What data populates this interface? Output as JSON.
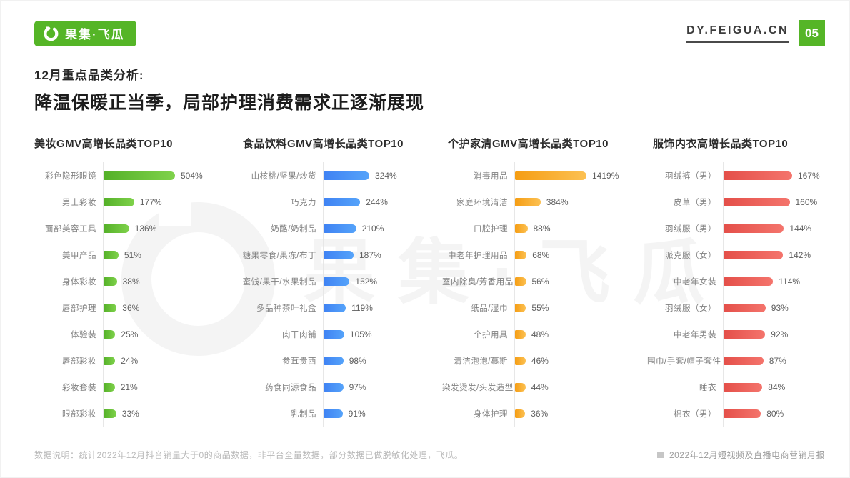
{
  "header": {
    "logo_text": "果集·飞瓜",
    "site_url": "DY.FEIGUA.CN",
    "page_number": "05"
  },
  "title": {
    "kicker": "12月重点品类分析:",
    "main": "降温保暖正当季，局部护理消费需求正逐渐展现"
  },
  "watermark_text": "果集·飞瓜",
  "brand_color": "#55b527",
  "footer": {
    "note": "数据说明：统计2022年12月抖音销量大于0的商品数据，非平台全量数据，部分数据已做脱敏化处理，飞瓜。",
    "source": "2022年12月短视频及直播电商营销月报"
  },
  "chart_data": [
    {
      "type": "bar",
      "orientation": "horizontal",
      "title": "美妆GMV高增长品类TOP10",
      "categories": [
        "彩色隐形眼镜",
        "男士彩妆",
        "面部美容工具",
        "美甲产品",
        "身体彩妆",
        "唇部护理",
        "体验装",
        "唇部彩妆",
        "彩妆套装",
        "眼部彩妆"
      ],
      "values": [
        504,
        177,
        136,
        51,
        38,
        36,
        25,
        24,
        21,
        33
      ],
      "value_labels": [
        "504%",
        "177%",
        "136%",
        "51%",
        "38%",
        "36%",
        "25%",
        "24%",
        "21%",
        "33%"
      ],
      "xlim": [
        0,
        504
      ],
      "bar_color_start": "#54b028",
      "bar_color_end": "#7fd24b"
    },
    {
      "type": "bar",
      "orientation": "horizontal",
      "title": "食品饮料GMV高增长品类TOP10",
      "categories": [
        "山核桃/坚果/炒货",
        "巧克力",
        "奶酪/奶制品",
        "糖果零食/果冻/布丁",
        "蜜饯/果干/水果制品",
        "多品种茶叶礼盒",
        "肉干肉铺",
        "参茸贵西",
        "药食同源食品",
        "乳制品"
      ],
      "values": [
        324,
        244,
        210,
        187,
        152,
        119,
        105,
        98,
        97,
        91
      ],
      "value_labels": [
        "324%",
        "244%",
        "210%",
        "187%",
        "152%",
        "119%",
        "105%",
        "98%",
        "97%",
        "91%"
      ],
      "xlim": [
        0,
        324
      ],
      "bar_color_start": "#3f82f3",
      "bar_color_end": "#55a3fa"
    },
    {
      "type": "bar",
      "orientation": "horizontal",
      "title": "个护家清GMV高增长品类TOP10",
      "categories": [
        "消毒用品",
        "家庭环境清洁",
        "口腔护理",
        "中老年护理用品",
        "室内除臭/芳香用品",
        "纸品/湿巾",
        "个护用具",
        "清洁泡泡/慕斯",
        "染发烫发/头发造型",
        "身体护理"
      ],
      "values": [
        1419,
        384,
        88,
        68,
        56,
        55,
        48,
        46,
        44,
        36
      ],
      "value_labels": [
        "1419%",
        "384%",
        "88%",
        "68%",
        "56%",
        "55%",
        "48%",
        "46%",
        "44%",
        "36%"
      ],
      "xlim": [
        0,
        1419
      ],
      "bar_color_start": "#f59d13",
      "bar_color_end": "#fcc153"
    },
    {
      "type": "bar",
      "orientation": "horizontal",
      "title": "服饰内衣高增长品类TOP10",
      "categories": [
        "羽绒裤（男）",
        "皮草（男）",
        "羽绒服（男）",
        "派克服（女）",
        "中老年女装",
        "羽绒服（女）",
        "中老年男装",
        "围巾/手套/帽子套件",
        "睡衣",
        "棉衣（男）"
      ],
      "values": [
        167,
        160,
        144,
        142,
        114,
        93,
        92,
        87,
        84,
        80
      ],
      "value_labels": [
        "167%",
        "160%",
        "144%",
        "142%",
        "114%",
        "93%",
        "92%",
        "87%",
        "84%",
        "80%"
      ],
      "xlim": [
        0,
        167
      ],
      "bar_color_start": "#e44f49",
      "bar_color_end": "#f4746c"
    }
  ]
}
